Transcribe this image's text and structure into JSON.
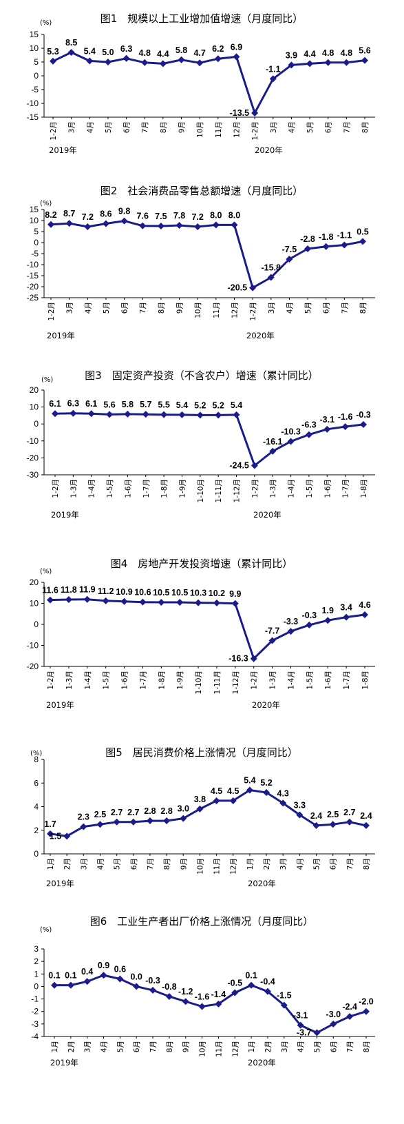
{
  "chart_data": [
    {
      "type": "line",
      "title": "图1　规模以上工业增加值增速（月度同比）",
      "unit": "(%)",
      "categories": [
        "1-2月",
        "3月",
        "4月",
        "5月",
        "6月",
        "7月",
        "8月",
        "9月",
        "10月",
        "11月",
        "12月",
        "1-2月",
        "3月",
        "4月",
        "5月",
        "6月",
        "7月",
        "8月"
      ],
      "values": [
        5.3,
        8.5,
        5.4,
        5.0,
        6.3,
        4.8,
        4.4,
        5.8,
        4.7,
        6.2,
        6.9,
        -13.5,
        -1.1,
        3.9,
        4.4,
        4.8,
        4.8,
        5.6
      ],
      "value_labels": [
        "5.3",
        "8.5",
        "5.4",
        "5.0",
        "6.3",
        "4.8",
        "4.4",
        "5.8",
        "4.7",
        "6.2",
        "6.9",
        "-13.5",
        "-1.1",
        "3.9",
        "4.4",
        "4.8",
        "4.8",
        "5.6"
      ],
      "ylim": [
        -15,
        15
      ],
      "yticks": [
        "15",
        "10",
        "5",
        "0",
        "-5",
        "-10",
        "-15"
      ],
      "years": [
        "2019年",
        "2020年"
      ],
      "grid": false
    },
    {
      "type": "line",
      "title": "图2　社会消费品零售总额增速（月度同比）",
      "unit": "(%)",
      "categories": [
        "1-2月",
        "3月",
        "4月",
        "5月",
        "6月",
        "7月",
        "8月",
        "9月",
        "10月",
        "11月",
        "12月",
        "1-2月",
        "3月",
        "4月",
        "5月",
        "6月",
        "7月",
        "8月"
      ],
      "values": [
        8.2,
        8.7,
        7.2,
        8.6,
        9.8,
        7.6,
        7.5,
        7.8,
        7.2,
        8.0,
        8.0,
        -20.5,
        -15.8,
        -7.5,
        -2.8,
        -1.8,
        -1.1,
        0.5
      ],
      "value_labels": [
        "8.2",
        "8.7",
        "7.2",
        "8.6",
        "9.8",
        "7.6",
        "7.5",
        "7.8",
        "7.2",
        "8.0",
        "8.0",
        "-20.5",
        "-15.8",
        "-7.5",
        "-2.8",
        "-1.8",
        "-1.1",
        "0.5"
      ],
      "ylim": [
        -25,
        15
      ],
      "yticks": [
        "15",
        "10",
        "5",
        "0",
        "-5",
        "-10",
        "-15",
        "-20",
        "-25"
      ],
      "years": [
        "2019年",
        "2020年"
      ],
      "grid": false
    },
    {
      "type": "line",
      "title": "图3　固定资产投资（不含农户）增速（累计同比）",
      "unit": "(%)",
      "categories": [
        "1-2月",
        "1-3月",
        "1-4月",
        "1-5月",
        "1-6月",
        "1-7月",
        "1-8月",
        "1-9月",
        "1-10月",
        "1-11月",
        "1-12月",
        "1-2月",
        "1-3月",
        "1-4月",
        "1-5月",
        "1-6月",
        "1-7月",
        "1-8月"
      ],
      "values": [
        6.1,
        6.3,
        6.1,
        5.6,
        5.8,
        5.7,
        5.5,
        5.4,
        5.2,
        5.2,
        5.4,
        -24.5,
        -16.1,
        -10.3,
        -6.3,
        -3.1,
        -1.6,
        -0.3
      ],
      "value_labels": [
        "6.1",
        "6.3",
        "6.1",
        "5.6",
        "5.8",
        "5.7",
        "5.5",
        "5.4",
        "5.2",
        "5.2",
        "5.4",
        "-24.5",
        "-16.1",
        "-10.3",
        "-6.3",
        "-3.1",
        "-1.6",
        "-0.3"
      ],
      "ylim": [
        -30,
        20
      ],
      "yticks": [
        "20",
        "10",
        "0",
        "-10",
        "-20",
        "-30"
      ],
      "years": [
        "2019年",
        "2020年"
      ],
      "grid": false
    },
    {
      "type": "line",
      "title": "图4　房地产开发投资增速（累计同比）",
      "unit": "(%)",
      "categories": [
        "1-2月",
        "1-3月",
        "1-4月",
        "1-5月",
        "1-6月",
        "1-7月",
        "1-8月",
        "1-9月",
        "1-10月",
        "1-11月",
        "1-12月",
        "1-2月",
        "1-3月",
        "1-4月",
        "1-5月",
        "1-6月",
        "1-7月",
        "1-8月"
      ],
      "values": [
        11.6,
        11.8,
        11.9,
        11.2,
        10.9,
        10.6,
        10.5,
        10.5,
        10.3,
        10.2,
        9.9,
        -16.3,
        -7.7,
        -3.3,
        -0.3,
        1.9,
        3.4,
        4.6
      ],
      "value_labels": [
        "11.6",
        "11.8",
        "11.9",
        "11.2",
        "10.9",
        "10.6",
        "10.5",
        "10.5",
        "10.3",
        "10.2",
        "9.9",
        "-16.3",
        "-7.7",
        "-3.3",
        "-0.3",
        "1.9",
        "3.4",
        "4.6"
      ],
      "ylim": [
        -20,
        20
      ],
      "yticks": [
        "20",
        "10",
        "0",
        "-10",
        "-20"
      ],
      "years": [
        "2019年",
        "2020年"
      ],
      "grid": false
    },
    {
      "type": "line",
      "title": "图5　居民消费价格上涨情况（月度同比）",
      "unit": "(%)",
      "categories": [
        "1月",
        "2月",
        "3月",
        "4月",
        "5月",
        "6月",
        "7月",
        "8月",
        "9月",
        "10月",
        "11月",
        "12月",
        "1月",
        "2月",
        "3月",
        "4月",
        "5月",
        "6月",
        "7月",
        "8月"
      ],
      "values": [
        1.7,
        1.5,
        2.3,
        2.5,
        2.7,
        2.7,
        2.8,
        2.8,
        3.0,
        3.8,
        4.5,
        4.5,
        5.4,
        5.2,
        4.3,
        3.3,
        2.4,
        2.5,
        2.7,
        2.4
      ],
      "value_labels": [
        "1.7",
        "1.5",
        "2.3",
        "2.5",
        "2.7",
        "2.7",
        "2.8",
        "2.8",
        "3.0",
        "3.8",
        "4.5",
        "4.5",
        "5.4",
        "5.2",
        "4.3",
        "3.3",
        "2.4",
        "2.5",
        "2.7",
        "2.4"
      ],
      "ylim": [
        0,
        8
      ],
      "yticks": [
        "8",
        "6",
        "4",
        "2",
        "0"
      ],
      "years": [
        "2019年",
        "2020年"
      ],
      "grid": false
    },
    {
      "type": "line",
      "title": "图6　工业生产者出厂价格上涨情况（月度同比）",
      "unit": "(%)",
      "categories": [
        "1月",
        "2月",
        "3月",
        "4月",
        "5月",
        "6月",
        "7月",
        "8月",
        "9月",
        "10月",
        "11月",
        "12月",
        "1月",
        "2月",
        "3月",
        "4月",
        "5月",
        "6月",
        "7月",
        "8月"
      ],
      "values": [
        0.1,
        0.1,
        0.4,
        0.9,
        0.6,
        0.0,
        -0.3,
        -0.8,
        -1.2,
        -1.6,
        -1.4,
        -0.5,
        0.1,
        -0.4,
        -1.5,
        -3.1,
        -3.7,
        -3.0,
        -2.4,
        -2.0
      ],
      "value_labels": [
        "0.1",
        "0.1",
        "0.4",
        "0.9",
        "0.6",
        "0.0",
        "-0.3",
        "-0.8",
        "-1.2",
        "-1.6",
        "-1.4",
        "-0.5",
        "0.1",
        "-0.4",
        "-1.5",
        "-3.1",
        "-3.7",
        "-3.0",
        "-2.4",
        "-2.0"
      ],
      "ylim": [
        -4,
        3
      ],
      "yticks": [
        "3",
        "2",
        "1",
        "0",
        "-1",
        "-2",
        "-3",
        "-4"
      ],
      "years": [
        "2019年",
        "2020年"
      ],
      "grid": false
    }
  ]
}
